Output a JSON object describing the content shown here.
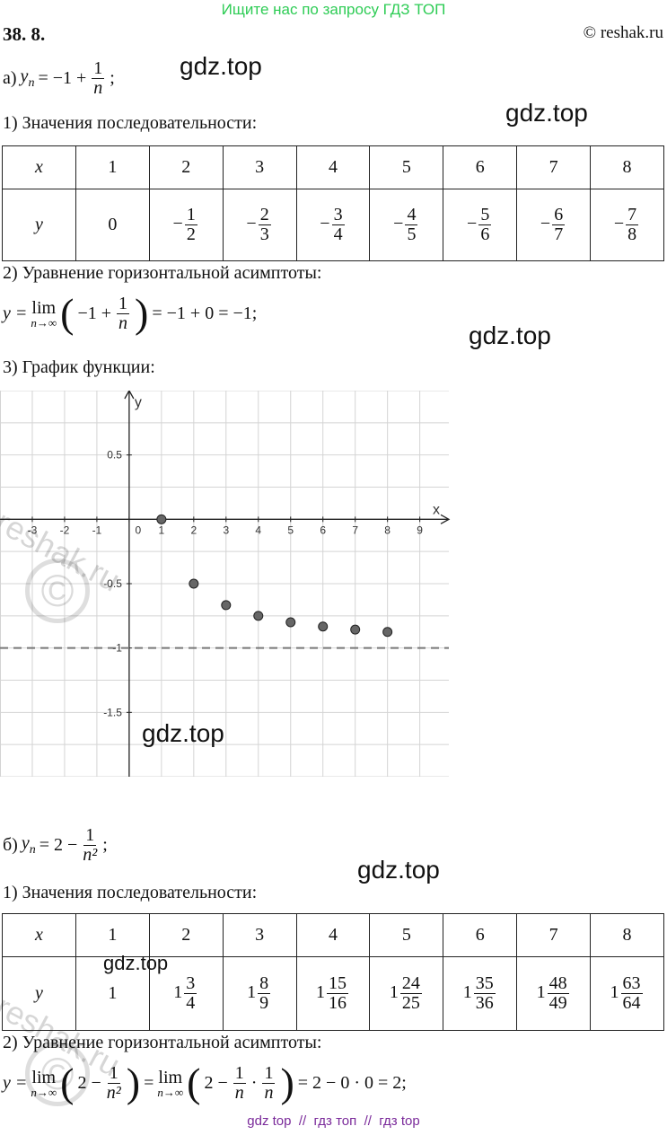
{
  "header": {
    "banner": "Ищите нас по запросу ГДЗ ТОП",
    "number": "38. 8.",
    "copyright": "© reshak.ru"
  },
  "part_a": {
    "label": "а)",
    "formula": {
      "y": "y",
      "sub": "n",
      "rhs": "= −1 +",
      "num": "1",
      "den": "n",
      "end": ";"
    },
    "step1": "1) Значения последовательности:",
    "table": {
      "rows": [
        [
          "x",
          1,
          2,
          3,
          4,
          5,
          6,
          7,
          8
        ],
        [
          "y",
          0,
          {
            "sign": "−",
            "num": 1,
            "den": 2
          },
          {
            "sign": "−",
            "num": 2,
            "den": 3
          },
          {
            "sign": "−",
            "num": 3,
            "den": 4
          },
          {
            "sign": "−",
            "num": 4,
            "den": 5
          },
          {
            "sign": "−",
            "num": 5,
            "den": 6
          },
          {
            "sign": "−",
            "num": 6,
            "den": 7
          },
          {
            "sign": "−",
            "num": 7,
            "den": 8
          }
        ]
      ]
    },
    "step2": "2) Уравнение горизонтальной асимптоты:",
    "limit": {
      "lhs": "y =",
      "lim": "lim",
      "under": "n→∞",
      "open": "(",
      "inner": "−1 +",
      "num": "1",
      "den": "n",
      "close": ")",
      "rhs": "= −1 + 0 = −1;"
    },
    "step3": "3) График функции:"
  },
  "graph": {
    "type": "scatter",
    "xlabel": "x",
    "ylabel": "y",
    "xlim": [
      -4,
      9.9
    ],
    "ylim": [
      -2,
      1
    ],
    "xticks": [
      -3,
      -2,
      -1,
      0,
      1,
      2,
      3,
      4,
      5,
      6,
      7,
      8,
      9
    ],
    "yticks": [
      -1.5,
      -1,
      -0.5,
      0.5
    ],
    "grid": true,
    "points": {
      "x": [
        1,
        2,
        3,
        4,
        5,
        6,
        7,
        8
      ],
      "y": [
        0,
        -0.5,
        -0.667,
        -0.75,
        -0.8,
        -0.833,
        -0.857,
        -0.875
      ]
    },
    "asymptote": -1
  },
  "part_b": {
    "label": "б)",
    "formula": {
      "y": "y",
      "sub": "n",
      "rhs": "= 2 −",
      "num": "1",
      "den": "n²",
      "end": ";"
    },
    "step1": "1) Значения последовательности:",
    "table": {
      "rows": [
        [
          "x",
          1,
          2,
          3,
          4,
          5,
          6,
          7,
          8
        ],
        [
          "y",
          1,
          {
            "whole": 1,
            "num": 3,
            "den": 4
          },
          {
            "whole": 1,
            "num": 8,
            "den": 9
          },
          {
            "whole": 1,
            "num": 15,
            "den": 16
          },
          {
            "whole": 1,
            "num": 24,
            "den": 25
          },
          {
            "whole": 1,
            "num": 35,
            "den": 36
          },
          {
            "whole": 1,
            "num": 48,
            "den": 49
          },
          {
            "whole": 1,
            "num": 63,
            "den": 64
          }
        ]
      ]
    },
    "step2": "2) Уравнение горизонтальной асимптоты:",
    "limit": {
      "lhs": "y =",
      "lim1": "lim",
      "under1": "n→∞",
      "open1": "(",
      "inner1": "2 −",
      "num1": "1",
      "den1": "n²",
      "close1": ")",
      "eq": "=",
      "lim2": "lim",
      "under2": "n→∞",
      "open2": "(",
      "inner2": "2 −",
      "num2a": "1",
      "den2a": "n",
      "dot": "·",
      "num2b": "1",
      "den2b": "n",
      "close2": ")",
      "rhs": "= 2 − 0 · 0 = 2;"
    }
  },
  "footer": "gdz top  //  гдз топ  //  гдз top",
  "watermarks": {
    "gdz": [
      "gdz.top",
      "gdz.top",
      "gdz.top",
      "gdz.top",
      "gdz.top",
      "gdz.top"
    ],
    "reshak": [
      "reshak.ru",
      "reshak.ru"
    ],
    "copy": [
      "©",
      "©"
    ]
  }
}
